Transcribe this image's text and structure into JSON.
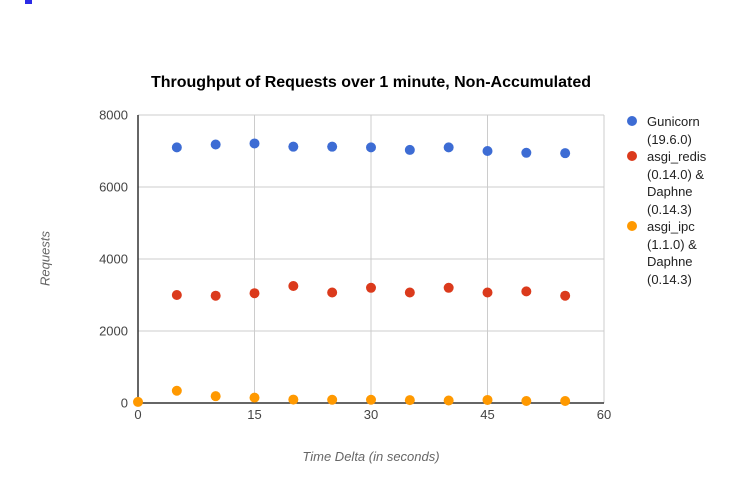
{
  "title": "Throughput of Requests over 1 minute, Non-Accumulated",
  "chart_data": {
    "type": "scatter",
    "title": "Throughput of Requests over 1 minute, Non-Accumulated",
    "xlabel": "Time Delta (in seconds)",
    "ylabel": "Requests",
    "xlim": [
      0,
      60
    ],
    "ylim": [
      0,
      8000
    ],
    "x_ticks": [
      0,
      15,
      30,
      45,
      60
    ],
    "y_ticks": [
      0,
      2000,
      4000,
      6000,
      8000
    ],
    "grid": true,
    "legend_position": "right",
    "point_radius": 5,
    "colors": {
      "gridline": "#cccccc",
      "axis": "#333333",
      "tick_label": "#444444",
      "axis_title": "#666666"
    },
    "series": [
      {
        "key": "gunicorn",
        "name": "Gunicorn (19.6.0)",
        "legend_lines": [
          "Gunicorn",
          "(19.6.0)"
        ],
        "color": "#3d6cd4",
        "points": [
          [
            5,
            7100
          ],
          [
            10,
            7180
          ],
          [
            15,
            7210
          ],
          [
            20,
            7120
          ],
          [
            25,
            7120
          ],
          [
            30,
            7100
          ],
          [
            35,
            7030
          ],
          [
            40,
            7100
          ],
          [
            45,
            7000
          ],
          [
            50,
            6950
          ],
          [
            55,
            6940
          ]
        ]
      },
      {
        "key": "asgi-redis-daphne",
        "name": "asgi_redis (0.14.0) & Daphne (0.14.3)",
        "legend_lines": [
          "asgi_redis",
          "(0.14.0) &",
          "Daphne",
          "(0.14.3)"
        ],
        "color": "#db3a1c",
        "points": [
          [
            5,
            3000
          ],
          [
            10,
            2980
          ],
          [
            15,
            3050
          ],
          [
            20,
            3250
          ],
          [
            25,
            3070
          ],
          [
            30,
            3200
          ],
          [
            35,
            3070
          ],
          [
            40,
            3200
          ],
          [
            45,
            3070
          ],
          [
            50,
            3100
          ],
          [
            55,
            2980
          ]
        ]
      },
      {
        "key": "asgi-ipc-daphne",
        "name": "asgi_ipc (1.1.0) & Daphne (0.14.3)",
        "legend_lines": [
          "asgi_ipc",
          "(1.1.0) &",
          "Daphne",
          "(0.14.3)"
        ],
        "color": "#ff9900",
        "points": [
          [
            0,
            30
          ],
          [
            5,
            340
          ],
          [
            10,
            190
          ],
          [
            15,
            150
          ],
          [
            20,
            95
          ],
          [
            25,
            90
          ],
          [
            30,
            90
          ],
          [
            35,
            80
          ],
          [
            40,
            70
          ],
          [
            45,
            85
          ],
          [
            50,
            55
          ],
          [
            55,
            55
          ]
        ]
      }
    ]
  }
}
